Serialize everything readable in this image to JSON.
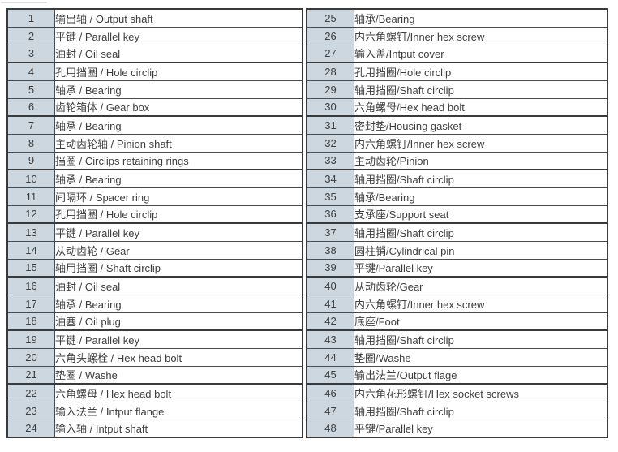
{
  "document": {
    "type": "parts-list-table",
    "language": "zh-CN / en"
  },
  "colors": {
    "page_background": "#ffffff",
    "number_cell_background": "#ccd7df",
    "border": "#4a4a4a",
    "group_border": "#3a3a3a",
    "text": "#3e3e3e",
    "artifact_line": "#dcdcdc"
  },
  "table": {
    "left_rows": [
      {
        "no": "1",
        "desc": "输出轴 / Output shaft"
      },
      {
        "no": "2",
        "desc": "平键 / Parallel key"
      },
      {
        "no": "3",
        "desc": "油封 / Oil seal"
      },
      {
        "no": "4",
        "desc": "孔用挡圈 / Hole circlip"
      },
      {
        "no": "5",
        "desc": "轴承 / Bearing"
      },
      {
        "no": "6",
        "desc": "齿轮箱体 / Gear box"
      },
      {
        "no": "7",
        "desc": "轴承 / Bearing"
      },
      {
        "no": "8",
        "desc": "主动齿轮轴 / Pinion shaft"
      },
      {
        "no": "9",
        "desc": "挡圈 / Circlips retaining rings"
      },
      {
        "no": "10",
        "desc": "轴承 / Bearing"
      },
      {
        "no": "11",
        "desc": "间隔环 / Spacer ring"
      },
      {
        "no": "12",
        "desc": "孔用挡圈 / Hole circlip"
      },
      {
        "no": "13",
        "desc": "平键 / Parallel key"
      },
      {
        "no": "14",
        "desc": "从动齿轮 / Gear"
      },
      {
        "no": "15",
        "desc": "轴用挡圈 / Shaft circlip"
      },
      {
        "no": "16",
        "desc": "油封 / Oil seal"
      },
      {
        "no": "17",
        "desc": "轴承 / Bearing"
      },
      {
        "no": "18",
        "desc": "油塞 / Oil plug"
      },
      {
        "no": "19",
        "desc": "平键 / Parallel key"
      },
      {
        "no": "20",
        "desc": "六角头螺栓 / Hex head bolt"
      },
      {
        "no": "21",
        "desc": "垫圈 / Washe"
      },
      {
        "no": "22",
        "desc": "六角螺母 / Hex head bolt"
      },
      {
        "no": "23",
        "desc": "输入法兰 / Intput flange"
      },
      {
        "no": "24",
        "desc": "输入轴 / Intput shaft"
      }
    ],
    "right_rows": [
      {
        "no": "25",
        "desc": "轴承/Bearing"
      },
      {
        "no": "26",
        "desc": "内六角螺钉/Inner hex screw"
      },
      {
        "no": "27",
        "desc": "输入盖/Intput cover"
      },
      {
        "no": "28",
        "desc": "孔用挡圈/Hole circlip"
      },
      {
        "no": "29",
        "desc": "轴用挡圈/Shaft circlip"
      },
      {
        "no": "30",
        "desc": "六角螺母/Hex head bolt"
      },
      {
        "no": "31",
        "desc": "密封垫/Housing gasket"
      },
      {
        "no": "32",
        "desc": "内六角螺钉/Inner hex screw"
      },
      {
        "no": "33",
        "desc": "主动齿轮/Pinion"
      },
      {
        "no": "34",
        "desc": "轴用挡圈/Shaft circlip"
      },
      {
        "no": "35",
        "desc": "轴承/Bearing"
      },
      {
        "no": "36",
        "desc": "支承座/Support seat"
      },
      {
        "no": "37",
        "desc": "轴用挡圈/Shaft circlip"
      },
      {
        "no": "38",
        "desc": "圆柱销/Cylindrical pin"
      },
      {
        "no": "39",
        "desc": "平键/Parallel key"
      },
      {
        "no": "40",
        "desc": "从动齿轮/Gear"
      },
      {
        "no": "41",
        "desc": "内六角螺钉/Inner hex screw"
      },
      {
        "no": "42",
        "desc": "底座/Foot"
      },
      {
        "no": "43",
        "desc": "轴用挡圈/Shaft circlip"
      },
      {
        "no": "44",
        "desc": "垫圈/Washe"
      },
      {
        "no": "45",
        "desc": "输出法兰/Output flage"
      },
      {
        "no": "46",
        "desc": "内六角花形螺钉/Hex socket screws"
      },
      {
        "no": "47",
        "desc": "轴用挡圈/Shaft circlip"
      },
      {
        "no": "48",
        "desc": "平键/Parallel key"
      }
    ]
  }
}
